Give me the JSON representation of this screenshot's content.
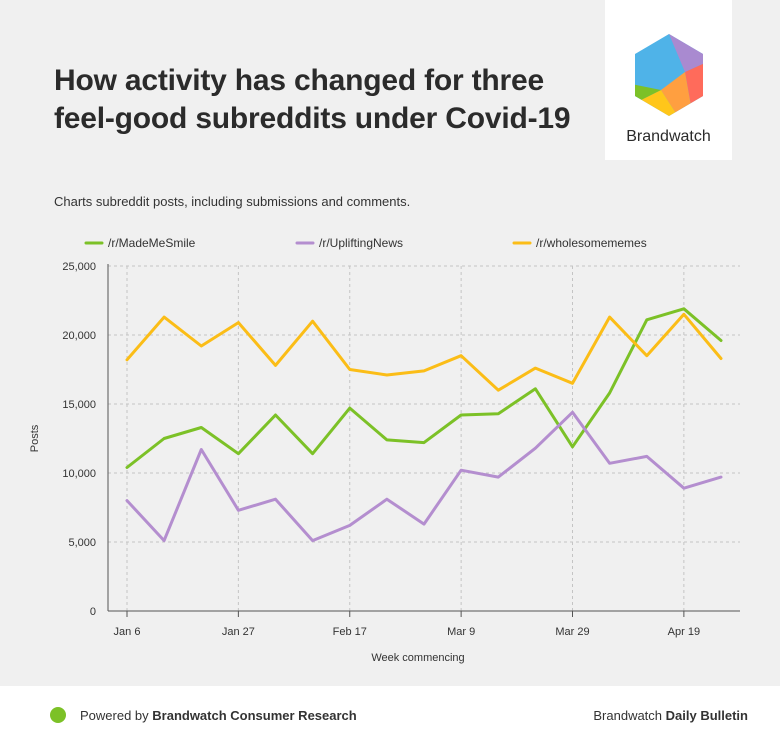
{
  "header": {
    "title": "How activity has changed for three feel-good subreddits under Covid-19",
    "subtitle": "Charts subreddit posts, including submissions and comments."
  },
  "logo": {
    "text": "Brandwatch",
    "colors": [
      "#4fb3e8",
      "#a98ad0",
      "#ff6b5b",
      "#ff9f40",
      "#ffc61a",
      "#7cc127"
    ]
  },
  "chart_data": {
    "type": "line",
    "xlabel": "Week commencing",
    "ylabel": "Posts",
    "ylim": [
      0,
      25000
    ],
    "yticks": [
      0,
      5000,
      10000,
      15000,
      20000,
      25000
    ],
    "ytick_labels": [
      "0",
      "5,000",
      "10,000",
      "15,000",
      "20,000",
      "25,000"
    ],
    "x": [
      "Jan 6",
      "Jan 13",
      "Jan 20",
      "Jan 27",
      "Feb 3",
      "Feb 10",
      "Feb 17",
      "Feb 24",
      "Mar 2",
      "Mar 9",
      "Mar 16",
      "Mar 23",
      "Mar 29",
      "Apr 5",
      "Apr 12",
      "Apr 19",
      "Apr 26"
    ],
    "xtick_labels": [
      "Jan 6",
      "Jan 27",
      "Feb 17",
      "Mar 9",
      "Mar 29",
      "Apr 19"
    ],
    "xtick_index": [
      0,
      3,
      6,
      9,
      12,
      15
    ],
    "grid": true,
    "legend_position": "top",
    "series": [
      {
        "name": "/r/MadeMeSmile",
        "color": "#7cc127",
        "values": [
          10400,
          12500,
          13300,
          11400,
          14200,
          11400,
          14700,
          12400,
          12200,
          14200,
          14300,
          16100,
          11900,
          15800,
          21100,
          21900,
          19600
        ]
      },
      {
        "name": "/r/UpliftingNews",
        "color": "#b48ecf",
        "values": [
          8000,
          5100,
          11700,
          7300,
          8100,
          5100,
          6200,
          8100,
          6300,
          10200,
          9700,
          11800,
          14400,
          10700,
          11200,
          8900,
          9700
        ]
      },
      {
        "name": "/r/wholesomememes",
        "color": "#fbbd17",
        "values": [
          18200,
          21300,
          19200,
          20900,
          17800,
          21000,
          17500,
          17100,
          17400,
          18500,
          16000,
          17600,
          16500,
          21300,
          18500,
          21500,
          18300
        ]
      }
    ]
  },
  "footer": {
    "prefix": "Powered by ",
    "brand": "Brandwatch Consumer Research",
    "right_prefix": "Brandwatch ",
    "right_bold": "Daily Bulletin",
    "dot_color": "#7cc127"
  }
}
